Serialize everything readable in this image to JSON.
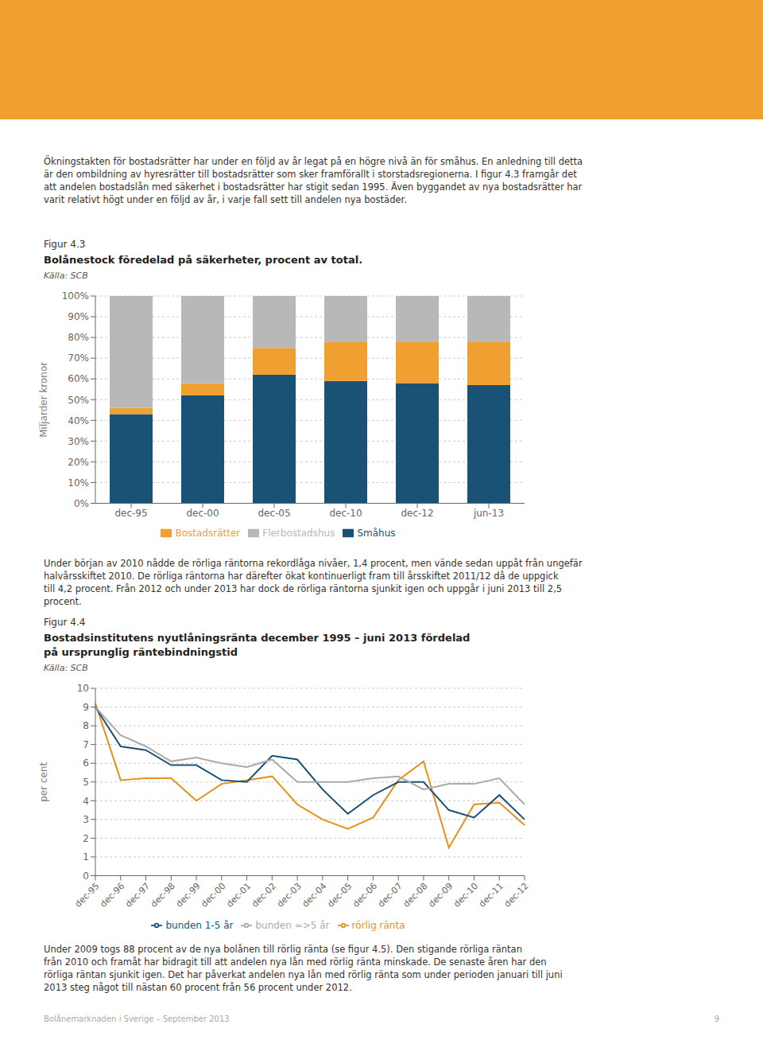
{
  "chart_data": [
    {
      "type": "bar",
      "stacked": true,
      "title": "Bolånestock föredelad på säkerheter, procent av total.",
      "annotations": [
        "Ökningstakten för bostadsrätter har under en följd av år legat på en högre nivå än för småhus. En anledning till detta\när den ombildning av hyresrätter till bostadsrätter som sker framförallt i storstadsregionerna. I figur 4.3 framgår det\natt andelen bostadslån med säkerhet i bostadsrätter har stigit sedan 1995. Även byggandet av nya bostadsrätter har\nvarit relativt högt under en följd av år, i varje fall sett till andelen nya bostäder.",
        "Figur 4.3",
        "Källa: SCB"
      ],
      "ylabel": "Miljarder kronor",
      "categories": [
        "dec-95",
        "dec-00",
        "dec-05",
        "dec-10",
        "dec-12",
        "jun-13"
      ],
      "series": [
        {
          "name": "Småhus",
          "color": "#1a5276",
          "values": [
            43,
            52,
            62,
            59,
            58,
            57
          ]
        },
        {
          "name": "Bostadsrätter",
          "color": "#f0a030",
          "values": [
            3,
            6,
            13,
            19,
            20,
            21
          ]
        },
        {
          "name": "Flerbostadshus",
          "color": "#b8b8b8",
          "values": [
            54,
            42,
            25,
            22,
            22,
            22
          ]
        }
      ],
      "ylim": [
        0,
        100
      ],
      "yticks": [
        {
          "value": 0,
          "label": "0%"
        },
        {
          "value": 10,
          "label": "10%"
        },
        {
          "value": 20,
          "label": "20%"
        },
        {
          "value": 30,
          "label": "30%"
        },
        {
          "value": 40,
          "label": "40%"
        },
        {
          "value": 50,
          "label": "50%"
        },
        {
          "value": 60,
          "label": "60%"
        },
        {
          "value": 70,
          "label": "70%"
        },
        {
          "value": 80,
          "label": "80%"
        },
        {
          "value": 90,
          "label": "90%"
        },
        {
          "value": 100,
          "label": "100%"
        }
      ],
      "grid": true,
      "legend": "bottom"
    },
    {
      "type": "line",
      "title": "Bostadsinstitutens nyutlåningsränta december 1995 – juni 2013 fördelad\npå ursprunglig räntebindningstid",
      "annotations": [
        "Under början av 2010 nådde de rörliga räntorna rekordlåga nivåer, 1,4 procent, men vände sedan uppåt från ungefär\nhalvårsskiftet 2010. De rörliga räntorna har därefter ökat kontinuerligt fram till årsskiftet 2011/12 då de uppgick\ntill 4,2 procent. Från 2012 och under 2013 har dock de rörliga räntorna sjunkit igen och uppgår i juni 2013 till 2,5\nprocent.",
        "Figur 4.4",
        "Källa: SCB",
        "Under 2009 togs 88 procent av de nya bolånen till rörlig ränta (se figur 4.5). Den stigande rörliga räntan\nfrån 2010 och framåt har bidragit till att andelen nya lån med rörlig ränta minskade. De senaste åren har den\nrörliga räntan sjunkit igen. Det har påverkat andelen nya lån med rörlig ränta som under perioden januari till juni\n2013 steg något till nästan 60 procent från 56 procent under 2012.",
        "Bolånemarknaden i Sverige – September 2013",
        "9"
      ],
      "ylabel": "per cent",
      "categories": [
        "dec-95",
        "dec-96",
        "dec-97",
        "dec-98",
        "dec-99",
        "dec-00",
        "dec-01",
        "dec-02",
        "dec-03",
        "dec-04",
        "dec-05",
        "dec-06",
        "dec-07",
        "dec-08",
        "dec-09",
        "dec-10",
        "dec-11",
        "dec-12"
      ],
      "series": [
        {
          "name": "rörlig ränta",
          "color": "#e8901a",
          "values": [
            9.2,
            5.1,
            5.2,
            5.2,
            4.0,
            4.9,
            5.1,
            5.3,
            3.8,
            3.0,
            2.5,
            3.1,
            5.1,
            6.1,
            1.5,
            3.8,
            3.9,
            2.7
          ]
        },
        {
          "name": "bunden 1-5 år",
          "color": "#1a5276",
          "values": [
            9.0,
            6.9,
            6.7,
            5.9,
            5.9,
            5.1,
            5.0,
            6.4,
            6.2,
            4.6,
            3.3,
            4.3,
            5.0,
            5.0,
            3.5,
            3.1,
            4.3,
            3.0
          ]
        },
        {
          "name": "bunden =>5 år",
          "color": "#aaaaaa",
          "values": [
            9.0,
            7.5,
            6.9,
            6.1,
            6.3,
            6.0,
            5.8,
            6.2,
            5.0,
            5.0,
            5.0,
            5.2,
            5.3,
            4.6,
            4.9,
            4.9,
            5.2,
            3.8
          ]
        }
      ],
      "ylim": [
        0,
        10
      ],
      "yticks": [
        0,
        1,
        2,
        3,
        4,
        5,
        6,
        7,
        8,
        9,
        10
      ],
      "grid": true,
      "legend": "bottom"
    }
  ]
}
